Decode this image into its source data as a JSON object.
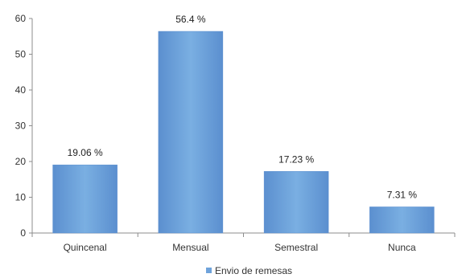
{
  "chart_data": {
    "type": "bar",
    "categories": [
      "Quincenal",
      "Mensual",
      "Semestral",
      "Nunca"
    ],
    "series": [
      {
        "name": "Envio de remesas",
        "values": [
          19.06,
          56.4,
          17.23,
          7.31
        ],
        "data_labels": [
          "19.06 %",
          "56.4 %",
          "17.23 %",
          "7.31 %"
        ],
        "color": "#6FA3DB"
      }
    ],
    "ylim": [
      0,
      60
    ],
    "yticks": [
      0,
      10,
      20,
      30,
      40,
      50,
      60
    ],
    "grid": false,
    "legend": "bottom",
    "title": "",
    "xlabel": "",
    "ylabel": ""
  }
}
